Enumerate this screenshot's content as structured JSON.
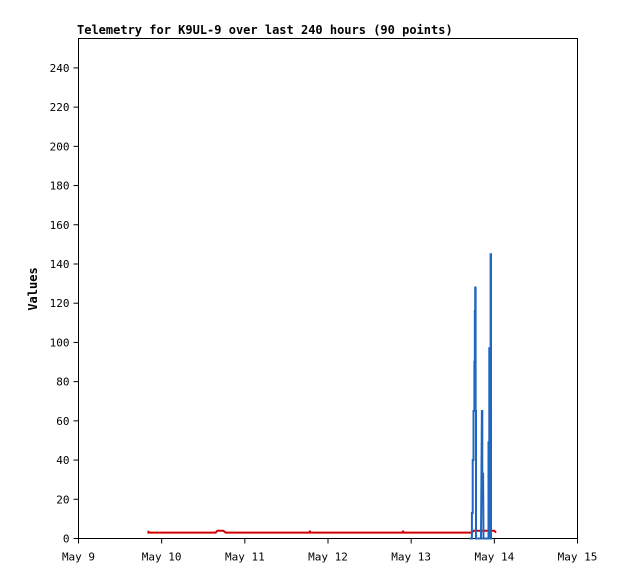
{
  "chart_data": {
    "type": "line",
    "title": "Telemetry for K9UL-9 over last 240 hours (90 points)",
    "xlabel": "",
    "ylabel": "Values",
    "x_ticks": [
      "May 9",
      "May 10",
      "May 11",
      "May 12",
      "May 13",
      "May 14",
      "May 15"
    ],
    "y_ticks": [
      "0",
      "20",
      "40",
      "60",
      "80",
      "100",
      "120",
      "140",
      "160",
      "180",
      "200",
      "220",
      "240"
    ],
    "xlim": [
      0,
      6
    ],
    "ylim": [
      0,
      255
    ],
    "grid": false,
    "legend": "none",
    "series": [
      {
        "color": "#1f66c1",
        "x": [
          5.0,
          5.0,
          5.02,
          5.03,
          5.04,
          5.05,
          5.06,
          5.07,
          5.08,
          5.09,
          5.1,
          5.11,
          5.12,
          5.13,
          5.14,
          5.15,
          5.16,
          5.17,
          5.18,
          5.19,
          5.2,
          5.21,
          5.22,
          5.23,
          5.24,
          5.25,
          5.26,
          5.27,
          5.28,
          5.29,
          5.3,
          5.31,
          5.32,
          5.33,
          5.34,
          5.35,
          5.36,
          5.37,
          5.38,
          5.39,
          5.4,
          5.41,
          5.42,
          5.43,
          5.44,
          5.45,
          5.46,
          5.47,
          5.48,
          5.49,
          5.5,
          5.51,
          5.52,
          5.53
        ],
        "x_dates": "fractional days from May 9",
        "values": [
          0,
          0,
          0,
          13,
          0,
          40,
          65,
          90,
          65,
          116,
          128,
          65,
          0,
          0,
          0,
          0,
          0,
          0,
          0,
          0,
          0,
          0,
          0,
          0,
          0,
          0,
          0,
          0,
          0,
          0,
          0,
          0,
          0,
          0,
          0,
          0,
          0,
          0,
          0,
          0,
          0,
          0,
          0,
          0,
          0,
          0,
          0,
          0,
          0,
          0,
          0,
          0,
          0,
          0
        ]
      },
      {
        "color": "#d40000",
        "values": []
      }
    ]
  }
}
